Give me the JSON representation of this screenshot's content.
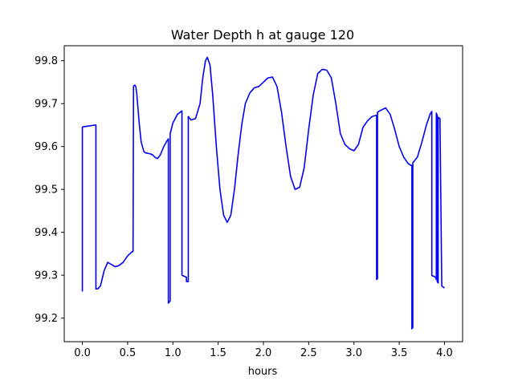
{
  "chart_data": {
    "type": "line",
    "title": "Water Depth h at gauge 120",
    "xlabel": "hours",
    "ylabel": "",
    "xlim": [
      -0.2,
      4.2
    ],
    "ylim": [
      99.145,
      99.835
    ],
    "xticks": [
      0.0,
      0.5,
      1.0,
      1.5,
      2.0,
      2.5,
      3.0,
      3.5,
      4.0
    ],
    "xtick_labels": [
      "0.0",
      "0.5",
      "1.0",
      "1.5",
      "2.0",
      "2.5",
      "3.0",
      "3.5",
      "4.0"
    ],
    "yticks": [
      99.2,
      99.3,
      99.4,
      99.5,
      99.6,
      99.7,
      99.8
    ],
    "ytick_labels": [
      "99.2",
      "99.3",
      "99.4",
      "99.5",
      "99.6",
      "99.7",
      "99.8"
    ],
    "grid": false,
    "series": [
      {
        "color": "#0000ff",
        "x": [
          0.0,
          0.0,
          0.01,
          0.14,
          0.15,
          0.15,
          0.17,
          0.2,
          0.24,
          0.28,
          0.32,
          0.36,
          0.4,
          0.45,
          0.5,
          0.55,
          0.56,
          0.565,
          0.57,
          0.58,
          0.59,
          0.6,
          0.61,
          0.63,
          0.65,
          0.68,
          0.7,
          0.75,
          0.78,
          0.8,
          0.83,
          0.86,
          0.9,
          0.94,
          0.95,
          0.95,
          0.97,
          0.97,
          0.97,
          1.0,
          1.05,
          1.1,
          1.1,
          1.15,
          1.15,
          1.17,
          1.17,
          1.2,
          1.25,
          1.3,
          1.33,
          1.36,
          1.38,
          1.41,
          1.44,
          1.48,
          1.52,
          1.56,
          1.6,
          1.64,
          1.68,
          1.72,
          1.76,
          1.8,
          1.85,
          1.9,
          1.95,
          2.0,
          2.05,
          2.1,
          2.15,
          2.2,
          2.25,
          2.3,
          2.35,
          2.4,
          2.45,
          2.5,
          2.55,
          2.6,
          2.65,
          2.7,
          2.75,
          2.8,
          2.85,
          2.9,
          2.95,
          3.0,
          3.05,
          3.1,
          3.15,
          3.2,
          3.25,
          3.25,
          3.26,
          3.26,
          3.3,
          3.35,
          3.4,
          3.45,
          3.5,
          3.55,
          3.6,
          3.63,
          3.64,
          3.64,
          3.65,
          3.65,
          3.7,
          3.75,
          3.8,
          3.84,
          3.86,
          3.86,
          3.87,
          3.88,
          3.9,
          3.91,
          3.91,
          3.92,
          3.92,
          3.93,
          3.93,
          3.95,
          3.97,
          4.0
        ],
        "y": [
          99.262,
          99.645,
          99.646,
          99.65,
          99.65,
          99.268,
          99.268,
          99.275,
          99.31,
          99.33,
          99.325,
          99.32,
          99.322,
          99.33,
          99.345,
          99.355,
          99.355,
          99.74,
          99.742,
          99.743,
          99.74,
          99.725,
          99.7,
          99.65,
          99.61,
          99.588,
          99.585,
          99.583,
          99.58,
          99.575,
          99.572,
          99.58,
          99.6,
          99.615,
          99.618,
          99.235,
          99.24,
          99.245,
          99.63,
          99.655,
          99.675,
          99.683,
          99.3,
          99.295,
          99.285,
          99.285,
          99.67,
          99.662,
          99.665,
          99.7,
          99.76,
          99.8,
          99.808,
          99.79,
          99.72,
          99.6,
          99.5,
          99.44,
          99.423,
          99.44,
          99.5,
          99.58,
          99.65,
          99.7,
          99.725,
          99.737,
          99.74,
          99.75,
          99.76,
          99.762,
          99.74,
          99.68,
          99.6,
          99.53,
          99.5,
          99.505,
          99.55,
          99.64,
          99.72,
          99.77,
          99.78,
          99.778,
          99.76,
          99.7,
          99.63,
          99.605,
          99.595,
          99.59,
          99.605,
          99.645,
          99.66,
          99.67,
          99.673,
          99.29,
          99.292,
          99.68,
          99.685,
          99.69,
          99.675,
          99.64,
          99.6,
          99.575,
          99.56,
          99.556,
          99.556,
          99.175,
          99.178,
          99.562,
          99.575,
          99.61,
          99.65,
          99.675,
          99.682,
          99.3,
          99.298,
          99.298,
          99.295,
          99.29,
          99.678,
          99.672,
          99.285,
          99.282,
          99.668,
          99.665,
          99.275,
          99.27
        ]
      }
    ]
  }
}
